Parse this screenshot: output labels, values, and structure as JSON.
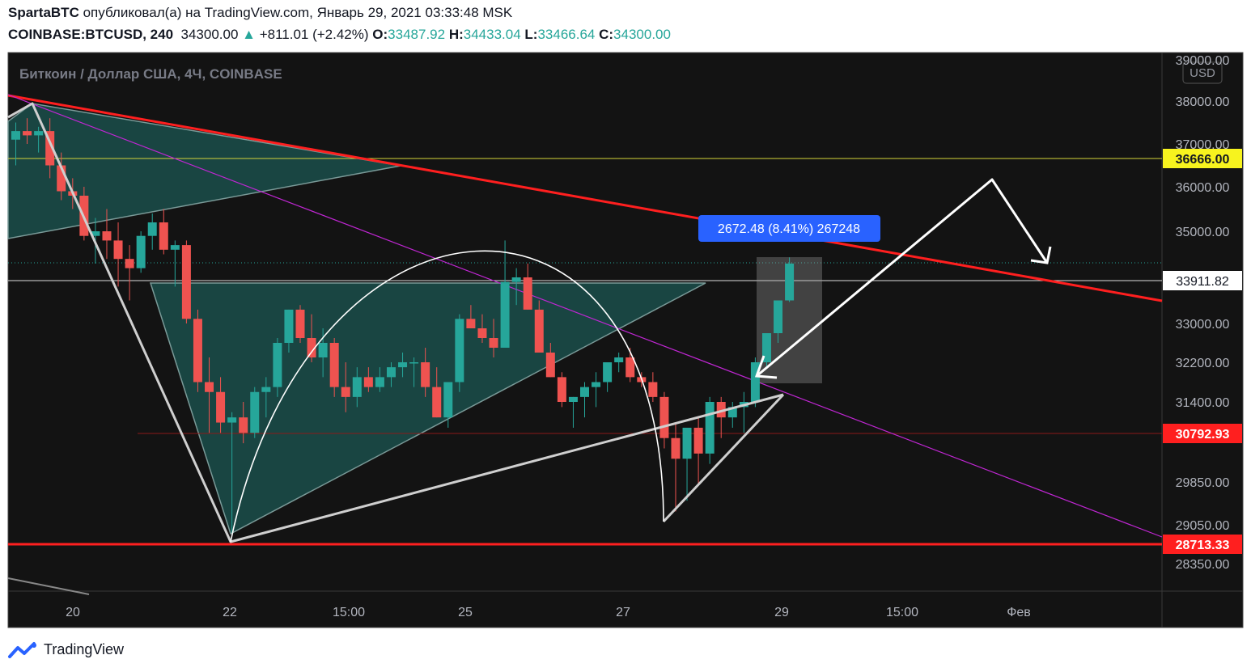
{
  "header": {
    "author": "SpartaBTC",
    "published_text": "опубликовал(а) на TradingView.com, Январь 29, 2021 03:33:48 MSK",
    "symbol": "COINBASE:BTCUSD, 240",
    "last": "34300.00",
    "change": "+811.01 (+2.42%)",
    "open_label": "O:",
    "open": "33487.92",
    "high_label": "H:",
    "high": "34433.04",
    "low_label": "L:",
    "low": "33466.64",
    "close_label": "C:",
    "close": "34300.00"
  },
  "footer": {
    "brand": "TradingView"
  },
  "colors": {
    "background": "#131313",
    "up": "#26a69a",
    "down": "#ef5350",
    "trendline_red": "#ff1f1f",
    "magenta": "#c026d3",
    "triangle_fill": "#1f6f6a",
    "label_blue": "#2962ff"
  },
  "chart_data": {
    "type": "candlestick",
    "title": "Биткоин / Доллар США, 4Ч, COINBASE",
    "currency_badge": "USD",
    "y_ticks": [
      "39000.00",
      "38000.00",
      "37000.00",
      "36000.00",
      "35000.00",
      "33000.00",
      "32200.00",
      "31400.00",
      "29850.00",
      "29050.00",
      "28350.00"
    ],
    "x_ticks": [
      "20",
      "22",
      "15:00",
      "25",
      "27",
      "15:00",
      "29",
      "Фев"
    ],
    "price_labels": [
      {
        "text": "36666.00",
        "kind": "yellow"
      },
      {
        "text": "33911.82",
        "kind": "white"
      },
      {
        "text": "30792.93",
        "kind": "red"
      },
      {
        "text": "28713.33",
        "kind": "red"
      }
    ],
    "measure_label": "2672.48 (8.41%) 267248",
    "candles_ohlc": [
      [
        37100,
        37500,
        36500,
        37300
      ],
      [
        37300,
        37600,
        37000,
        37200
      ],
      [
        37200,
        37400,
        36800,
        37300
      ],
      [
        37300,
        37600,
        36200,
        36500
      ],
      [
        36500,
        36800,
        35700,
        35900
      ],
      [
        35900,
        36200,
        35500,
        35800
      ],
      [
        35800,
        36000,
        34800,
        34900
      ],
      [
        34900,
        35300,
        34300,
        35000
      ],
      [
        35000,
        35500,
        34400,
        34800
      ],
      [
        34800,
        35200,
        33800,
        34400
      ],
      [
        34400,
        34700,
        33500,
        34200
      ],
      [
        34200,
        35000,
        34100,
        34900
      ],
      [
        34900,
        35400,
        34600,
        35200
      ],
      [
        35200,
        35500,
        34500,
        34600
      ],
      [
        34600,
        34800,
        33800,
        34700
      ],
      [
        34700,
        34800,
        33000,
        33100
      ],
      [
        33100,
        33300,
        31600,
        31800
      ],
      [
        31800,
        32300,
        30800,
        31600
      ],
      [
        31600,
        31900,
        30800,
        31000
      ],
      [
        31000,
        31200,
        28900,
        31100
      ],
      [
        31100,
        31400,
        30600,
        30800
      ],
      [
        30800,
        31700,
        30700,
        31600
      ],
      [
        31600,
        31900,
        31100,
        31700
      ],
      [
        31700,
        32700,
        31500,
        32600
      ],
      [
        32600,
        33300,
        32400,
        33300
      ],
      [
        33300,
        33400,
        32600,
        32700
      ],
      [
        32700,
        33200,
        32200,
        32300
      ],
      [
        32300,
        32900,
        31900,
        32600
      ],
      [
        32600,
        32700,
        31500,
        31700
      ],
      [
        31700,
        32200,
        31200,
        31500
      ],
      [
        31500,
        32100,
        31300,
        31900
      ],
      [
        31900,
        32100,
        31600,
        31700
      ],
      [
        31700,
        32100,
        31600,
        31900
      ],
      [
        31900,
        32200,
        31700,
        32100
      ],
      [
        32100,
        32400,
        31900,
        32200
      ],
      [
        32200,
        32300,
        31700,
        32200
      ],
      [
        32200,
        32500,
        31500,
        31700
      ],
      [
        31700,
        32100,
        31100,
        31100
      ],
      [
        31100,
        31400,
        30900,
        31800
      ],
      [
        31800,
        33200,
        31600,
        33100
      ],
      [
        33100,
        33400,
        32900,
        32900
      ],
      [
        32900,
        33200,
        32600,
        32700
      ],
      [
        32700,
        33100,
        32300,
        32500
      ],
      [
        32500,
        34800,
        32500,
        33900
      ],
      [
        33900,
        34200,
        33400,
        34000
      ],
      [
        34000,
        34300,
        33300,
        33300
      ],
      [
        33300,
        33500,
        32400,
        32400
      ],
      [
        32400,
        32600,
        31900,
        31900
      ],
      [
        31900,
        32000,
        31300,
        31400
      ],
      [
        31400,
        31500,
        30900,
        31500
      ],
      [
        31500,
        31800,
        31100,
        31700
      ],
      [
        31700,
        32000,
        31300,
        31800
      ],
      [
        31800,
        32200,
        31600,
        32200
      ],
      [
        32200,
        32400,
        32000,
        32300
      ],
      [
        32300,
        32500,
        31800,
        31900
      ],
      [
        31900,
        32000,
        31700,
        31800
      ],
      [
        31800,
        32000,
        31400,
        31500
      ],
      [
        31500,
        31600,
        30500,
        30700
      ],
      [
        30700,
        31000,
        29300,
        30300
      ],
      [
        30300,
        30800,
        29500,
        30900
      ],
      [
        30900,
        31100,
        29800,
        30400
      ],
      [
        30400,
        31500,
        30200,
        31400
      ],
      [
        31400,
        31500,
        30700,
        31100
      ],
      [
        31100,
        31400,
        30900,
        31300
      ],
      [
        31300,
        31600,
        30800,
        31400
      ],
      [
        31400,
        32300,
        31300,
        32200
      ],
      [
        32200,
        32800,
        32100,
        32800
      ],
      [
        32800,
        33400,
        32600,
        33500
      ],
      [
        33500,
        34433,
        33466,
        34300
      ]
    ]
  }
}
